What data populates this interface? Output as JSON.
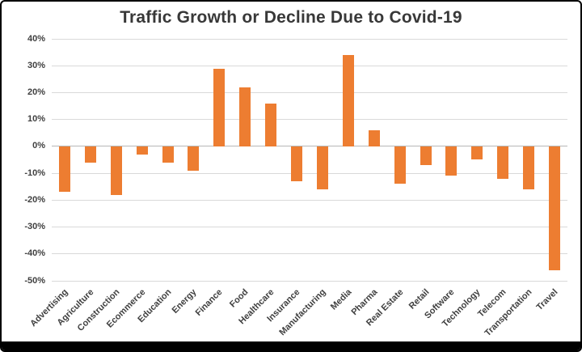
{
  "page": {
    "title": "Traffic Growth or Decline Due to Covid-19"
  },
  "chart_data": {
    "type": "bar",
    "title": "Traffic Growth or Decline Due to Covid-19",
    "categories": [
      "Advertising",
      "Agriculture",
      "Construction",
      "Ecommerce",
      "Education",
      "Energy",
      "Finance",
      "Food",
      "Healthcare",
      "Insurance",
      "Manufacturing",
      "Media",
      "Pharma",
      "Real Estate",
      "Retail",
      "Software",
      "Technology",
      "Telecom",
      "Transportation",
      "Travel"
    ],
    "values": [
      -17,
      -6,
      -18,
      -3,
      -6,
      -9,
      29,
      22,
      16,
      -13,
      -16,
      34,
      6,
      -14,
      -7,
      -11,
      -5,
      -12,
      -16,
      -46
    ],
    "xlabel": "",
    "ylabel": "",
    "ylim": [
      -50,
      40
    ],
    "ytick_values": [
      40,
      30,
      20,
      10,
      0,
      -10,
      -20,
      -30,
      -40,
      -50
    ],
    "ytick_labels": [
      "40%",
      "30%",
      "20%",
      "10%",
      "0%",
      "-10%",
      "-20%",
      "-30%",
      "-40%",
      "-50%"
    ],
    "grid": true,
    "legend": false,
    "colors": {
      "bar": "#ED7D31",
      "grid": "#D9D9D9",
      "zero_line": "#B7B7B7",
      "text": "#3F3F3F",
      "title": "#383838",
      "frame_border": "#000000"
    }
  }
}
